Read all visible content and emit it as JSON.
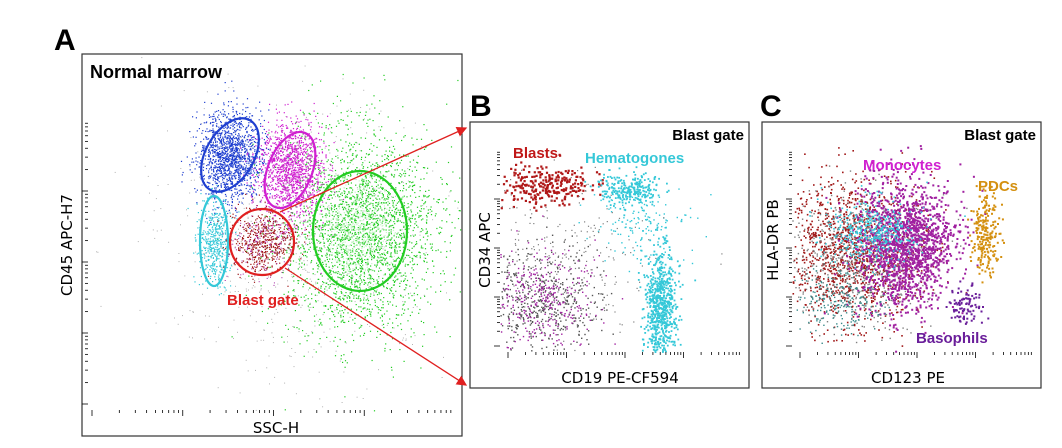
{
  "figure": {
    "colors": {
      "blue": "#1f3fd0",
      "magenta": "#d020d0",
      "green": "#22cc22",
      "cyan": "#35c8d8",
      "red": "#e02020",
      "darkred": "#a01818",
      "purple": "#a020a0",
      "orange": "#d49010",
      "violet": "#6a1e9a",
      "gray": "#808080"
    },
    "panels": {
      "A": {
        "letter": "A",
        "title": "Normal marrow",
        "xlabel": "SSC-H",
        "ylabel": "CD45 APC-H7",
        "gate_label": "Blast gate"
      },
      "B": {
        "letter": "B",
        "gate_title": "Blast gate",
        "xlabel": "CD19 PE-CF594",
        "ylabel": "CD34 APC",
        "populations": [
          "Blasts",
          "Hematogones"
        ]
      },
      "C": {
        "letter": "C",
        "gate_title": "Blast gate",
        "xlabel": "CD123 PE",
        "ylabel": "HLA-DR PB",
        "populations": [
          "Monocytes",
          "PDCs",
          "Basophils"
        ]
      }
    }
  }
}
